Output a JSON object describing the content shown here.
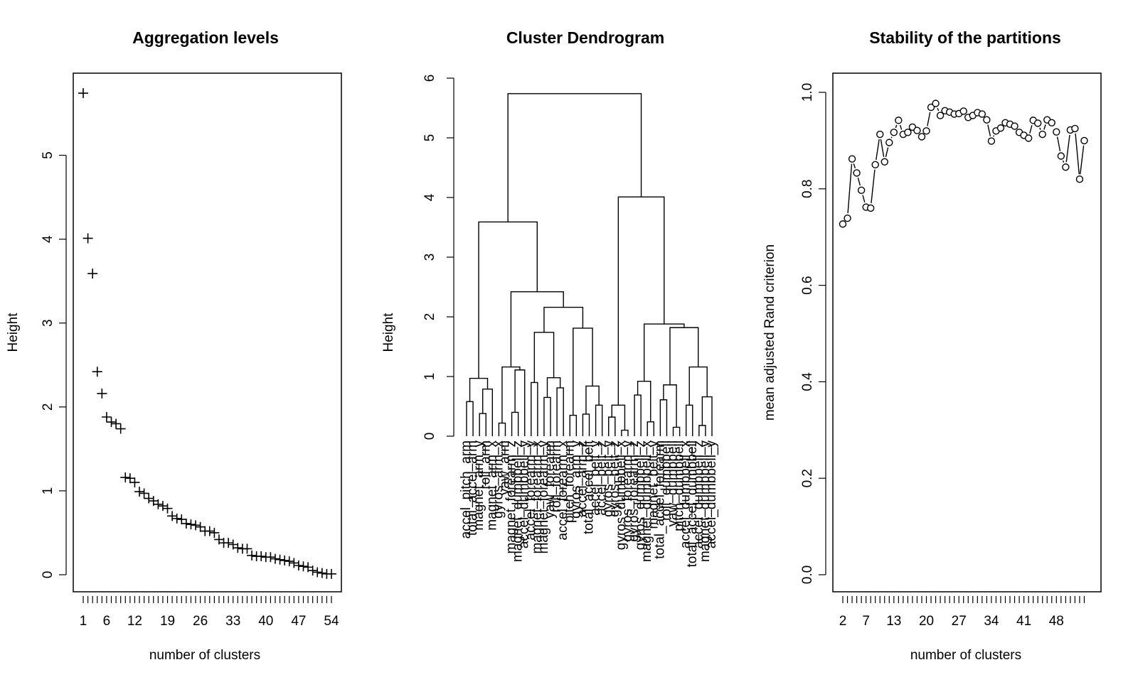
{
  "chart_data": [
    {
      "type": "scatter",
      "title": "Aggregation levels",
      "xlabel": "number of clusters",
      "ylabel": "Height",
      "marker": "+",
      "xlim": [
        1,
        54
      ],
      "ylim": [
        0,
        5.75
      ],
      "xticks": [
        1,
        6,
        12,
        19,
        26,
        33,
        40,
        47,
        54
      ],
      "yticks": [
        0,
        1,
        2,
        3,
        4,
        5
      ],
      "x": [
        1,
        2,
        3,
        4,
        5,
        6,
        7,
        8,
        9,
        10,
        11,
        12,
        13,
        14,
        15,
        16,
        17,
        18,
        19,
        20,
        21,
        22,
        23,
        24,
        25,
        26,
        27,
        28,
        29,
        30,
        31,
        32,
        33,
        34,
        35,
        36,
        37,
        38,
        39,
        40,
        41,
        42,
        43,
        44,
        45,
        46,
        47,
        48,
        49,
        50,
        51,
        52,
        53,
        54
      ],
      "y": [
        5.74,
        4.01,
        3.59,
        2.42,
        2.16,
        1.88,
        1.82,
        1.8,
        1.74,
        1.16,
        1.15,
        1.1,
        0.99,
        0.97,
        0.91,
        0.88,
        0.84,
        0.82,
        0.79,
        0.7,
        0.67,
        0.66,
        0.61,
        0.6,
        0.59,
        0.57,
        0.52,
        0.52,
        0.5,
        0.42,
        0.38,
        0.38,
        0.36,
        0.32,
        0.31,
        0.31,
        0.23,
        0.22,
        0.22,
        0.21,
        0.21,
        0.19,
        0.18,
        0.17,
        0.16,
        0.14,
        0.11,
        0.1,
        0.09,
        0.05,
        0.03,
        0.02,
        0.01,
        0.01
      ]
    },
    {
      "type": "dendrogram",
      "title": "Cluster Dendrogram",
      "ylabel": "Height",
      "ylim": [
        0,
        6
      ],
      "yticks": [
        0,
        1,
        2,
        3,
        4,
        5,
        6
      ],
      "leaves": [
        "accel_pitch_arm",
        "total_accel_arm",
        "magnet_arm_y",
        "roll_arm",
        "magnet_arm_x",
        "gyros_arm_x",
        "yaw_arm",
        "magnet_forearm_z",
        "magnet_dumbbell_z",
        "accel_dumbbell_y",
        "accel_forearm_y",
        "magnet_forearm_x",
        "magnet_forearm_y",
        "yaw_forearm",
        "roll_forearm",
        "accel_forearm_x",
        "pitch_forearm",
        "gyros_arm_y",
        "accel_arm_z",
        "total_accel_belt",
        "accel_belt_y",
        "accel_belt_z",
        "gyros_belt_y",
        "gyros_belt_z",
        "gyros_dumbbell_x",
        "gyros_forearm_y",
        "gyros_forearm_z",
        "gyros_dumbbell_z",
        "magnet_dumbbell_x",
        "magnet_belt_y",
        "total_accel_forearm",
        "roll_dumbbell",
        "yaw_dumbbell",
        "pitch_dumbbell",
        "accel_dumbbell_x",
        "total_accel_dumbbell",
        "accel_dumbbell_z",
        "magnet_dumbbell_y",
        "accel_dumbbell_y"
      ],
      "root_height": 5.74,
      "left_branch_height": 3.59,
      "right_branch_height": 4.01
    },
    {
      "type": "line",
      "title": "Stability of the partitions",
      "xlabel": "number of clusters",
      "ylabel": "mean adjusted Rand criterion",
      "marker": "o",
      "xlim": [
        2,
        55
      ],
      "ylim": [
        0,
        1
      ],
      "xticks": [
        2,
        7,
        13,
        20,
        27,
        34,
        41,
        48
      ],
      "yticks": [
        0.0,
        0.2,
        0.4,
        0.6,
        0.8,
        1.0
      ],
      "ytick_labels": [
        "0.0",
        "0.2",
        "0.4",
        "0.6",
        "0.8",
        "1.0"
      ],
      "x": [
        2,
        3,
        4,
        5,
        6,
        7,
        8,
        9,
        10,
        11,
        12,
        13,
        14,
        15,
        16,
        17,
        18,
        19,
        20,
        21,
        22,
        23,
        24,
        25,
        26,
        27,
        28,
        29,
        30,
        31,
        32,
        33,
        34,
        35,
        36,
        37,
        38,
        39,
        40,
        41,
        42,
        43,
        44,
        45,
        46,
        47,
        48,
        49,
        50,
        51,
        52,
        53,
        54
      ],
      "y": [
        0.727,
        0.739,
        0.862,
        0.833,
        0.797,
        0.762,
        0.76,
        0.85,
        0.913,
        0.856,
        0.896,
        0.917,
        0.942,
        0.913,
        0.917,
        0.928,
        0.921,
        0.908,
        0.92,
        0.969,
        0.977,
        0.952,
        0.962,
        0.959,
        0.955,
        0.956,
        0.961,
        0.948,
        0.952,
        0.958,
        0.955,
        0.943,
        0.899,
        0.92,
        0.926,
        0.937,
        0.934,
        0.93,
        0.917,
        0.911,
        0.905,
        0.942,
        0.936,
        0.913,
        0.943,
        0.937,
        0.918,
        0.868,
        0.845,
        0.922,
        0.925,
        0.82,
        0.9
      ]
    }
  ]
}
